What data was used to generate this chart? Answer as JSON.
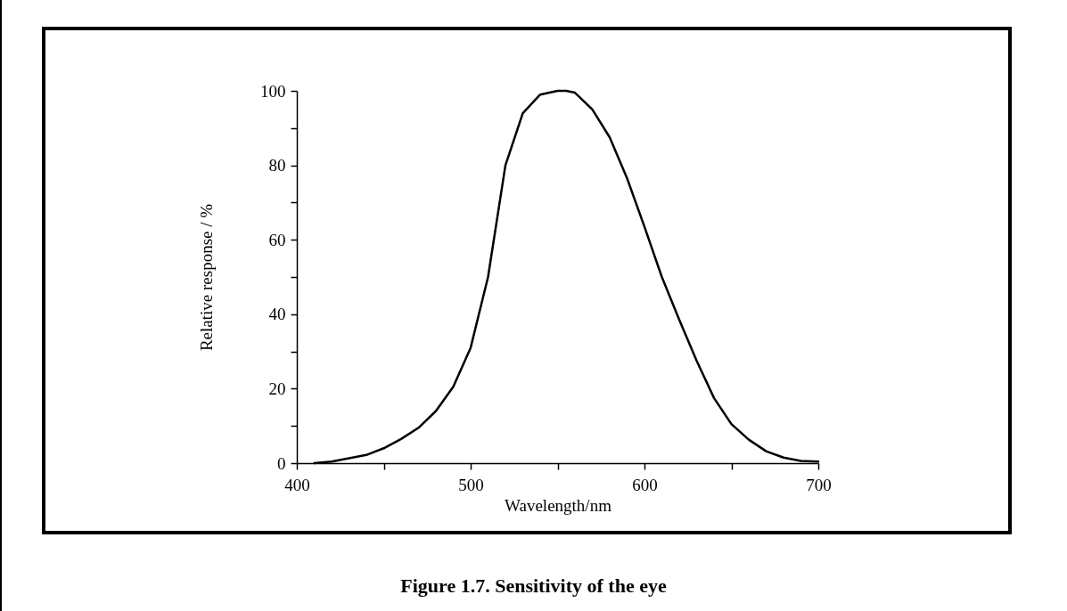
{
  "chart_data": {
    "type": "line",
    "xlabel": "Wavelength/nm",
    "ylabel": "Relative response / %",
    "annotations": [
      "Figure 1.7.  Sensitivity of the eye"
    ],
    "x": [
      410,
      420,
      430,
      440,
      450,
      460,
      470,
      480,
      490,
      500,
      510,
      520,
      530,
      540,
      550,
      555,
      560,
      570,
      580,
      590,
      600,
      610,
      620,
      630,
      640,
      650,
      660,
      670,
      680,
      690,
      700
    ],
    "series": [
      {
        "color": "#000000",
        "values": [
          0,
          0.4,
          1.3,
          2.2,
          4,
          6.5,
          9.5,
          14,
          20.5,
          31,
          50,
          80,
          94,
          99,
          100,
          100,
          99.5,
          95,
          87.5,
          76.5,
          63.5,
          50,
          38.5,
          27.5,
          17.5,
          10.5,
          6.3,
          3.2,
          1.5,
          0.6,
          0.4
        ]
      }
    ],
    "xlim": [
      400,
      700
    ],
    "ylim": [
      0,
      100
    ],
    "xticks": [
      400,
      {
        "value": 450,
        "label": null
      },
      500,
      {
        "value": 550,
        "label": null
      },
      600,
      {
        "value": 650,
        "label": null
      },
      700
    ],
    "yticks": [
      0,
      {
        "value": 10,
        "label": null
      },
      20,
      {
        "value": 30,
        "label": null
      },
      40,
      {
        "value": 50,
        "label": null
      },
      60,
      {
        "value": 70,
        "label": null
      },
      80,
      {
        "value": 90,
        "label": null
      },
      100
    ],
    "grid": false,
    "marker": "none",
    "line_style": "solid"
  }
}
